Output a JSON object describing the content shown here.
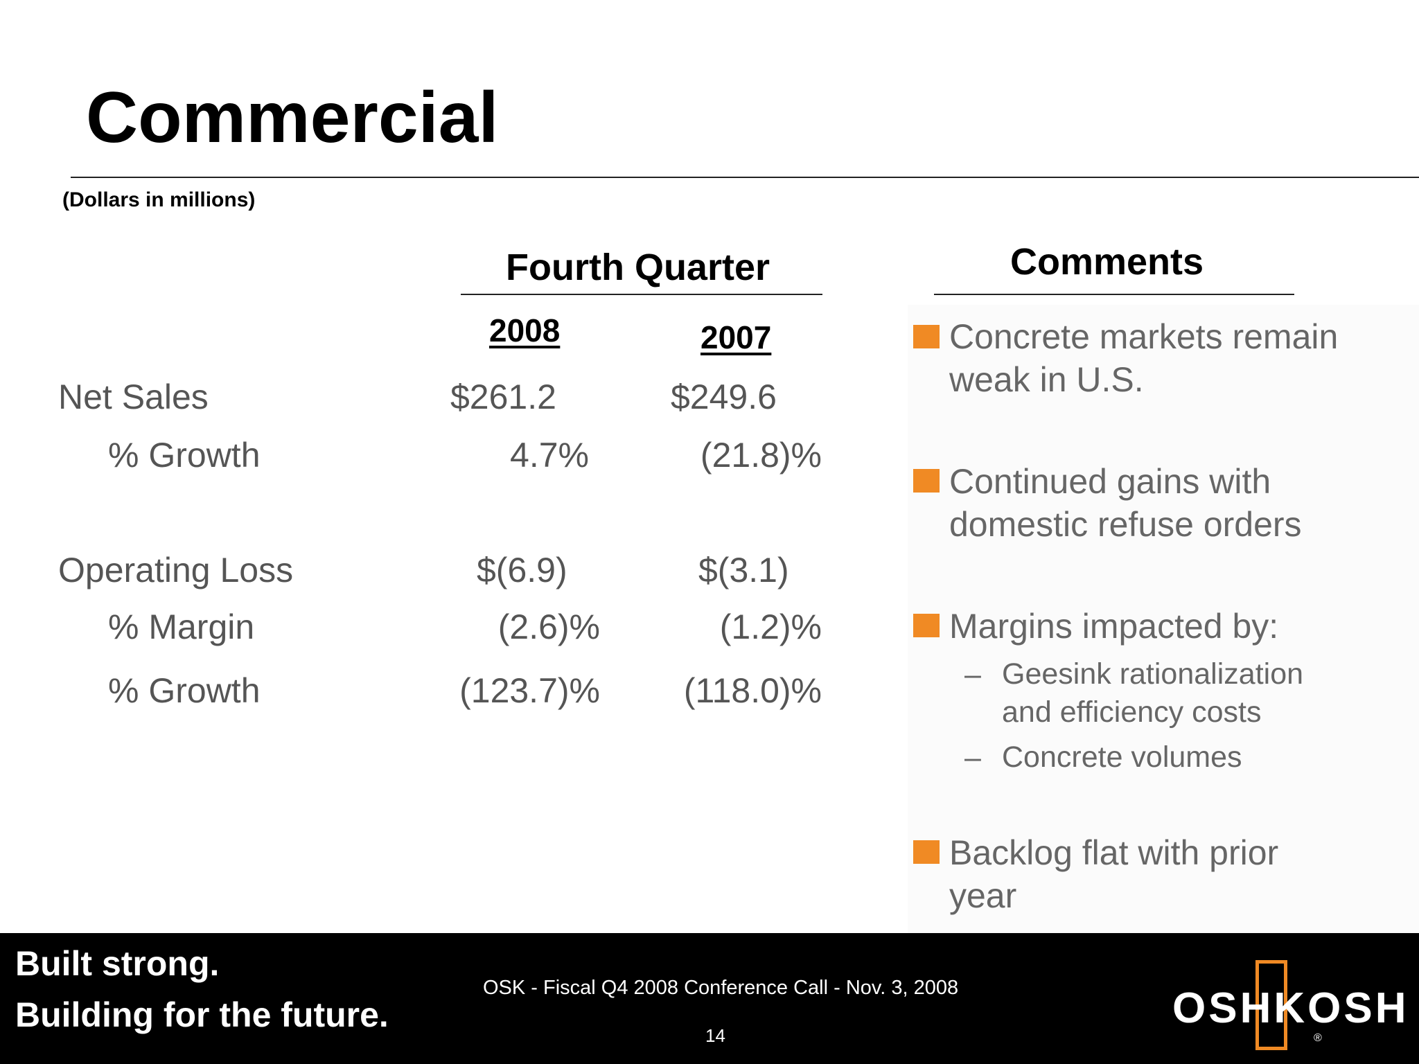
{
  "slide": {
    "title": "Commercial",
    "subtitle": "(Dollars in millions)"
  },
  "table": {
    "section_header": "Fourth Quarter",
    "years": [
      "2008",
      "2007"
    ],
    "rows": [
      {
        "label": "Net Sales",
        "v2008": "$261.2",
        "v2007": "$249.6"
      },
      {
        "label": "% Growth",
        "v2008": "4.7%",
        "v2007": "(21.8)%"
      },
      {
        "label": "Operating Loss",
        "v2008": "$(6.9)",
        "v2007": "$(3.1)"
      },
      {
        "label": "% Margin",
        "v2008": "(2.6)%",
        "v2007": "(1.2)%"
      },
      {
        "label": "% Growth",
        "v2008": "(123.7)%",
        "v2007": "(118.0)%"
      }
    ]
  },
  "comments": {
    "header": "Comments",
    "bullets": [
      {
        "text": "Concrete markets remain weak in U.S."
      },
      {
        "text": "Continued gains with domestic refuse orders"
      },
      {
        "text": "Margins impacted by:",
        "sub": [
          "Geesink rationalization and efficiency costs",
          "Concrete volumes"
        ]
      },
      {
        "text": "Backlog flat with prior year"
      }
    ]
  },
  "footer": {
    "tagline_1": "Built strong.",
    "tagline_2": "Building for the future.",
    "center_text": "OSK - Fiscal Q4 2008 Conference Call - Nov. 3, 2008",
    "page_number": "14",
    "logo_text": "OSHKOSH",
    "logo_registered": "®"
  },
  "colors": {
    "accent": "#f08a24",
    "footer_bg": "#000000",
    "body_text": "#555555"
  }
}
